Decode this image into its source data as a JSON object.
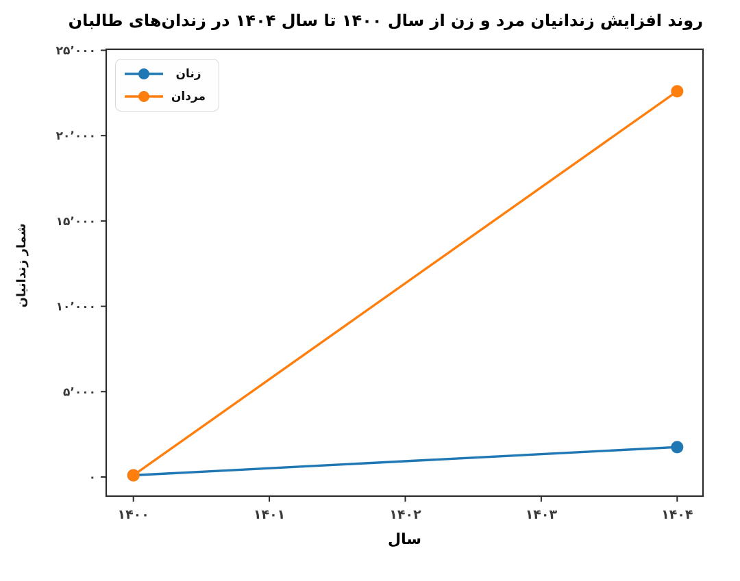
{
  "chart_data": {
    "type": "line",
    "title": "روند افزایش زندانیان مرد و زن از سال ۱۴۰۰ تا سال ۱۴۰۴ در زندان‌های طالبان",
    "xlabel": "سال",
    "ylabel": "شمار زندانیان",
    "x": [
      1400,
      1404
    ],
    "series": [
      {
        "name": "زنان",
        "values": [
          100,
          1750
        ],
        "color": "#1f77b4"
      },
      {
        "name": "مردان",
        "values": [
          100,
          22600
        ],
        "color": "#ff7f0e"
      }
    ],
    "x_ticks": {
      "values": [
        1400,
        1401,
        1402,
        1403,
        1404
      ],
      "labels": [
        "۱۴۰۰",
        "۱۴۰۱",
        "۱۴۰۲",
        "۱۴۰۳",
        "۱۴۰۴"
      ]
    },
    "y_ticks": {
      "values": [
        0,
        5000,
        10000,
        15000,
        20000,
        25000
      ],
      "labels": [
        "۰",
        "۵’۰۰۰",
        "۱۰’۰۰۰",
        "۱۵’۰۰۰",
        "۲۰’۰۰۰",
        "۲۵’۰۰۰"
      ]
    },
    "xlim": [
      1399.8,
      1404.19
    ],
    "ylim": [
      -1123,
      25060
    ],
    "grid": false,
    "legend_position": "upper-left",
    "marker": "circle",
    "axis_color": "#2b2b2b",
    "tick_label_color": "#3a3a3a",
    "background": "#ffffff"
  }
}
